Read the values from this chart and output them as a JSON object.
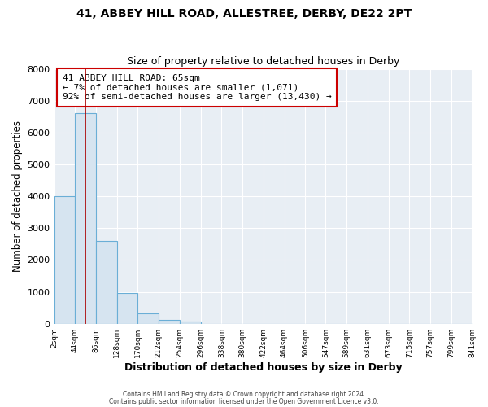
{
  "title1": "41, ABBEY HILL ROAD, ALLESTREE, DERBY, DE22 2PT",
  "title2": "Size of property relative to detached houses in Derby",
  "xlabel": "Distribution of detached houses by size in Derby",
  "ylabel": "Number of detached properties",
  "bin_edges": [
    2,
    44,
    86,
    128,
    170,
    212,
    254,
    296,
    338,
    380,
    422,
    464,
    506,
    547,
    589,
    631,
    673,
    715,
    757,
    799,
    841
  ],
  "bin_heights": [
    4000,
    6600,
    2600,
    970,
    330,
    130,
    70,
    0,
    0,
    0,
    0,
    0,
    0,
    0,
    0,
    0,
    0,
    0,
    0,
    0
  ],
  "bar_color": "#d6e4f0",
  "bar_edge_color": "#6aaed6",
  "vline_x": 65,
  "vline_color": "#aa0000",
  "ylim": [
    0,
    8000
  ],
  "yticks": [
    0,
    1000,
    2000,
    3000,
    4000,
    5000,
    6000,
    7000,
    8000
  ],
  "annotation_title": "41 ABBEY HILL ROAD: 65sqm",
  "annotation_line1": "← 7% of detached houses are smaller (1,071)",
  "annotation_line2": "92% of semi-detached houses are larger (13,430) →",
  "annotation_box_facecolor": "#ffffff",
  "annotation_box_edgecolor": "#cc0000",
  "footer1": "Contains HM Land Registry data © Crown copyright and database right 2024.",
  "footer2": "Contains public sector information licensed under the Open Government Licence v3.0.",
  "plot_bg_color": "#e8eef4",
  "fig_bg_color": "#ffffff",
  "grid_color": "#ffffff"
}
